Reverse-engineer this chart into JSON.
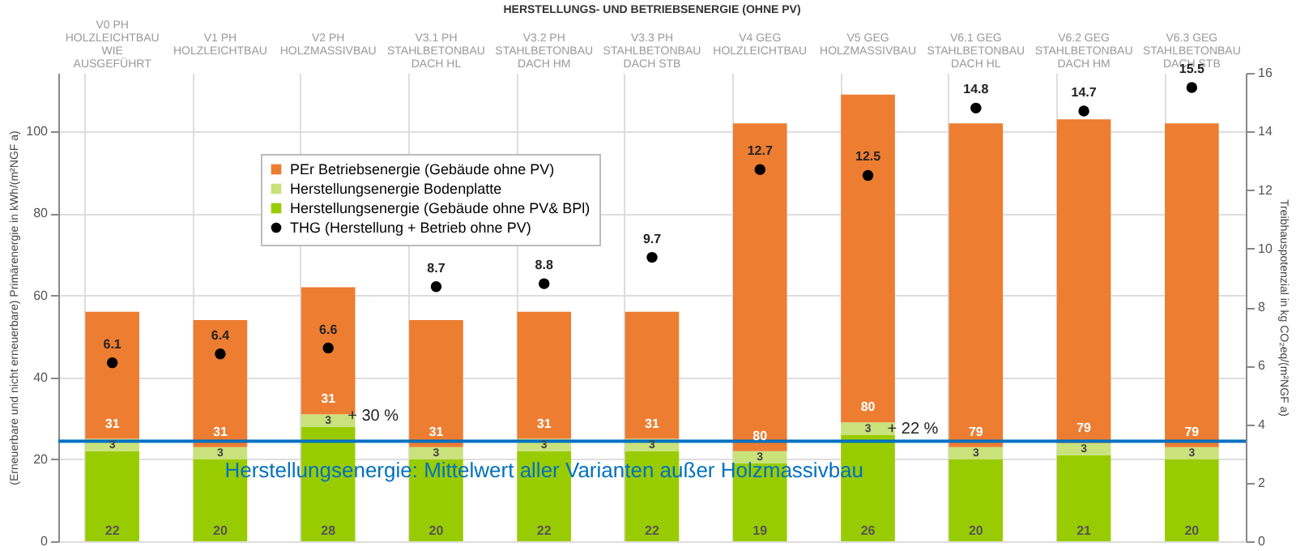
{
  "chart_data": {
    "type": "bar",
    "title": "HERSTELLUNGS- UND BETRIEBSENERGIE (OHNE PV)",
    "ylabel": "(Erneuerbare und nicht erneuerbare) Primärenergie in kWh/(m²NGF a)",
    "y2label": "Treibhauspotenzial in kg CO₂eq/(m²NGF a)",
    "categories": [
      "V0 PH HOLZLEICHTBAU WIE AUSGEFÜHRT",
      "V1 PH HOLZLEICHTBAU",
      "V2 PH HOLZMASSIVBAU",
      "V3.1 PH STAHLBETONBAU DACH HL",
      "V3.2 PH STAHLBETONBAU DACH HM",
      "V3.3 PH STAHLBETONBAU DACH STB",
      "V4 GEG HOLZLEICHTBAU",
      "V5 GEG HOLZMASSIVBAU",
      "V6.1 GEG STAHLBETONBAU DACH HL",
      "V6.2 GEG STAHLBETONBAU DACH HM",
      "V6.3 GEG STAHLBETONBAU DACH STB"
    ],
    "stacked": true,
    "series": [
      {
        "name": "Herstellungsenergie (Gebäude ohne PV& BPl)",
        "color": "#99cc00",
        "values": [
          22,
          20,
          28,
          20,
          22,
          22,
          19,
          26,
          20,
          21,
          20
        ]
      },
      {
        "name": "Herstellungsenergie Bodenplatte",
        "color": "#c9e27c",
        "values": [
          3,
          3,
          3,
          3,
          3,
          3,
          3,
          3,
          3,
          3,
          3
        ]
      },
      {
        "name": "PEr Betriebsenergie (Gebäude ohne PV)",
        "color": "#ed7d31",
        "values": [
          31,
          31,
          31,
          31,
          31,
          31,
          80,
          80,
          79,
          79,
          79
        ]
      },
      {
        "name": "THG (Herstellung + Betrieb ohne PV)",
        "type": "scatter",
        "axis": "y2",
        "color": "#000000",
        "values": [
          6.1,
          6.4,
          6.6,
          8.7,
          8.8,
          9.7,
          12.7,
          12.5,
          14.8,
          14.7,
          15.5
        ]
      }
    ],
    "data_labels": true,
    "ylim": [
      0,
      114.3
    ],
    "yticks": [
      0,
      20,
      40,
      60,
      80,
      100
    ],
    "y2lim": [
      0,
      16
    ],
    "y2ticks": [
      0,
      2,
      4,
      6,
      8,
      10,
      12,
      14,
      16
    ],
    "ref_lines": [
      {
        "axis": "y",
        "value": 24.4,
        "label": "Herstellungsenergie: Mittelwert aller Varianten außer Holzmassivbau",
        "color": "#0070c0"
      }
    ],
    "annotations": [
      {
        "text": "+ 30 %",
        "x": "V2 PH HOLZMASSIVBAU",
        "y": 29
      },
      {
        "text": "+ 22 %",
        "x": "V5 GEG HOLZMASSIVBAU",
        "y": 26
      }
    ],
    "grid": true,
    "legend": "top left",
    "marker": "circle"
  }
}
